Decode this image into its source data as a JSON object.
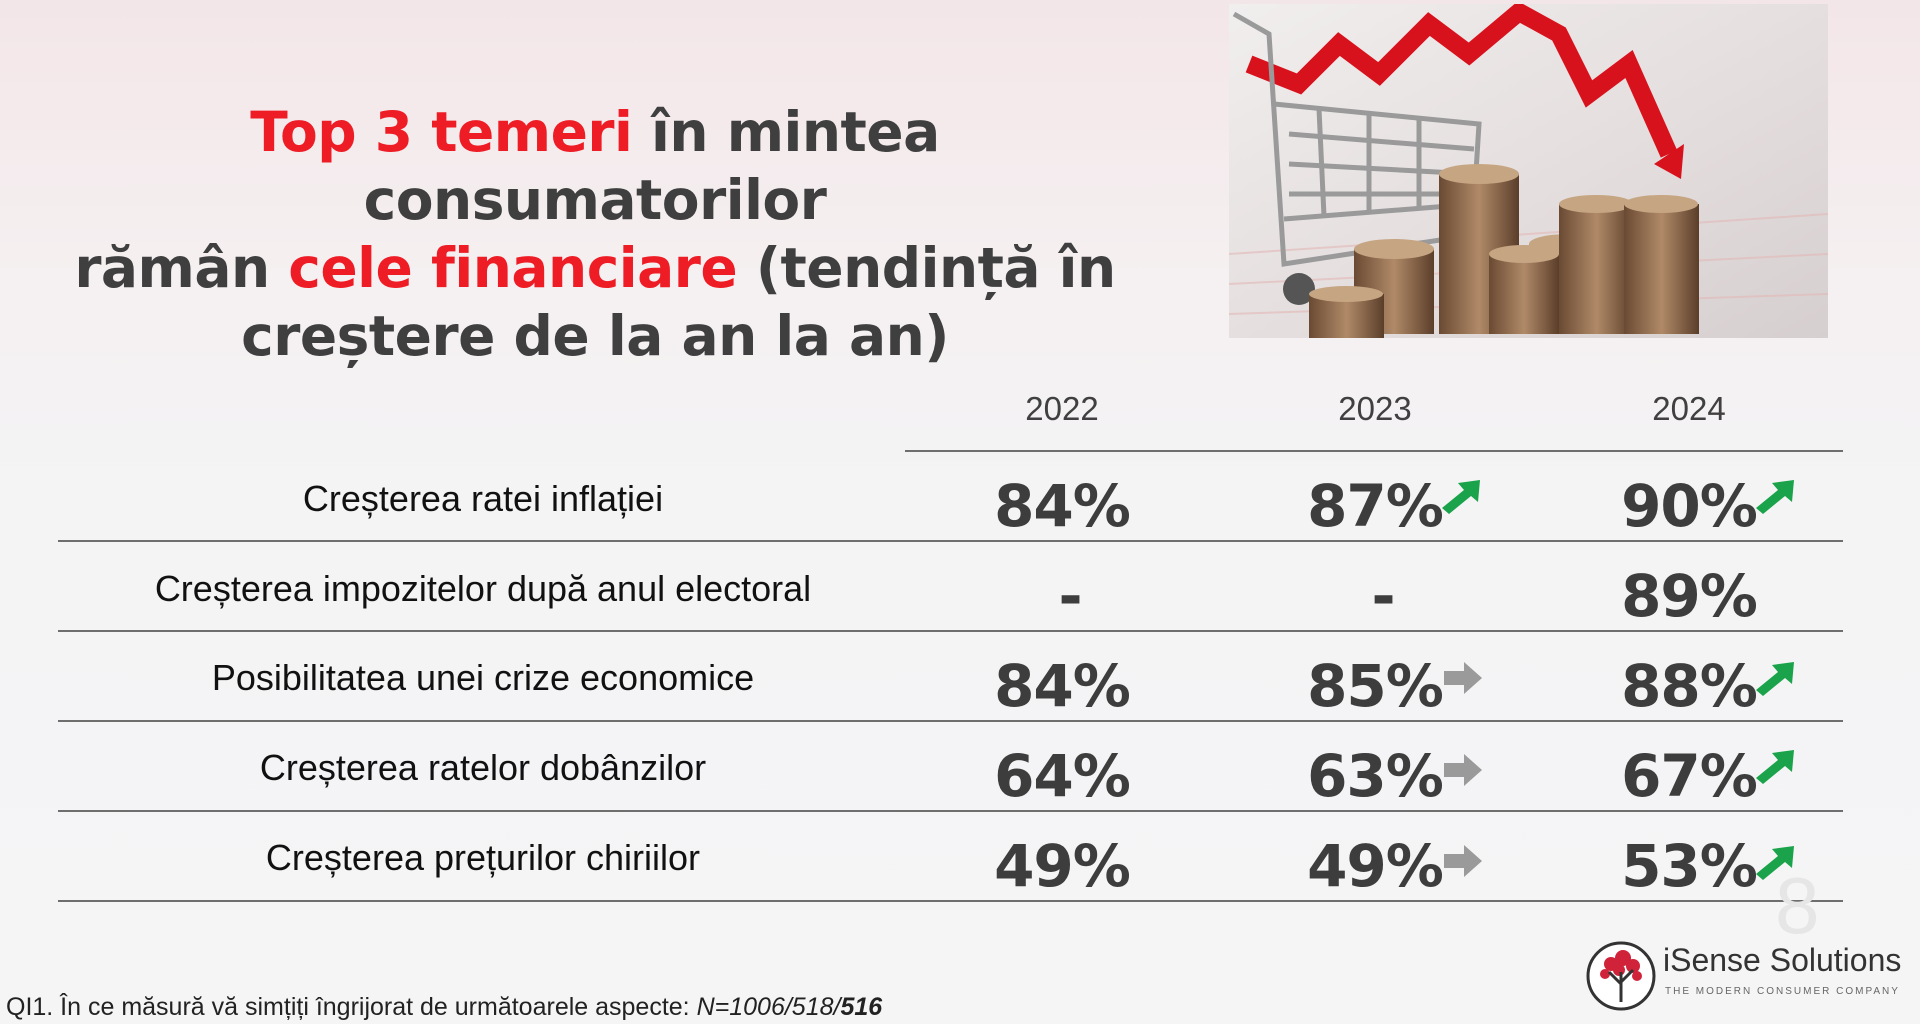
{
  "title": {
    "part1_red": "Top 3 temeri",
    "part2": " în mintea consumatorilor",
    "part3": "rămân ",
    "part4_red": "cele financiare",
    "part5": " (tendință în",
    "part6": "creștere de la an la an)"
  },
  "colors": {
    "accent_red": "#ee1c25",
    "up_arrow": "#1aa34a",
    "flat_arrow": "#9a9a9a"
  },
  "table": {
    "years": [
      "2022",
      "2023",
      "2024"
    ],
    "rows": [
      {
        "label": "Creșterea ratei inflației",
        "values": [
          "84%",
          "87%",
          "90%"
        ],
        "trends": [
          "",
          "up-arrow-icon",
          "up-arrow-icon"
        ]
      },
      {
        "label": "Creșterea impozitelor după anul electoral",
        "values": [
          "-",
          "-",
          "89%"
        ],
        "trends": [
          "",
          "",
          ""
        ]
      },
      {
        "label": "Posibilitatea unei crize economice",
        "values": [
          "84%",
          "85%",
          "88%"
        ],
        "trends": [
          "",
          "right-arrow-icon",
          "up-arrow-icon"
        ]
      },
      {
        "label": "Creșterea ratelor dobânzilor",
        "values": [
          "64%",
          "63%",
          "67%"
        ],
        "trends": [
          "",
          "right-arrow-icon",
          "up-arrow-icon"
        ]
      },
      {
        "label": "Creșterea prețurilor chiriilor",
        "values": [
          "49%",
          "49%",
          "53%"
        ],
        "trends": [
          "",
          "right-arrow-icon",
          "up-arrow-icon"
        ]
      }
    ]
  },
  "footnote": {
    "text": "QI1. În ce măsură vă simțiți îngrijorat de următoarele aspecte: ",
    "n_italic": "N=1006/518/",
    "n_bold": "516"
  },
  "page_number": "8",
  "logo": {
    "name": "iSense Solutions",
    "tagline": "THE MODERN CONSUMER COMPANY"
  }
}
